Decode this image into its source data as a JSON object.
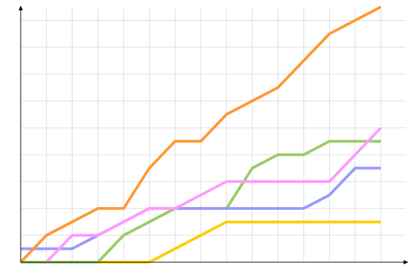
{
  "chart_data": {
    "type": "line",
    "title": "",
    "xlabel": "",
    "ylabel": "",
    "x": [
      0,
      1,
      2,
      3,
      4,
      5,
      6,
      7,
      8,
      9,
      10,
      11,
      12,
      13,
      14
    ],
    "xlim": [
      0,
      14
    ],
    "ylim": [
      0,
      9.5
    ],
    "grid": true,
    "legend": "none",
    "series": [
      {
        "color": "#ff9933",
        "values": [
          0,
          1,
          1.5,
          2,
          2,
          3.5,
          4.5,
          4.5,
          5.5,
          6,
          6.5,
          7.5,
          8.5,
          9,
          9.5
        ]
      },
      {
        "color": "#ff99ff",
        "values": [
          null,
          0,
          1,
          1,
          1.5,
          2,
          2,
          2.5,
          3,
          3,
          3,
          3,
          3,
          4,
          5
        ]
      },
      {
        "color": "#9999ff",
        "values": [
          0.5,
          0.5,
          0.5,
          1,
          1.5,
          2,
          2,
          2,
          2,
          2,
          2,
          2,
          2.5,
          3.5,
          3.5
        ]
      },
      {
        "color": "#99cc66",
        "values": [
          0,
          0,
          0,
          0,
          1,
          1.5,
          2,
          2,
          2,
          3.5,
          4,
          4,
          4.5,
          4.5,
          4.5
        ]
      },
      {
        "color": "#ffcc00",
        "values": [
          null,
          null,
          null,
          0,
          0,
          0,
          0.5,
          1,
          1.5,
          1.5,
          1.5,
          1.5,
          1.5,
          1.5,
          1.5
        ]
      }
    ]
  }
}
